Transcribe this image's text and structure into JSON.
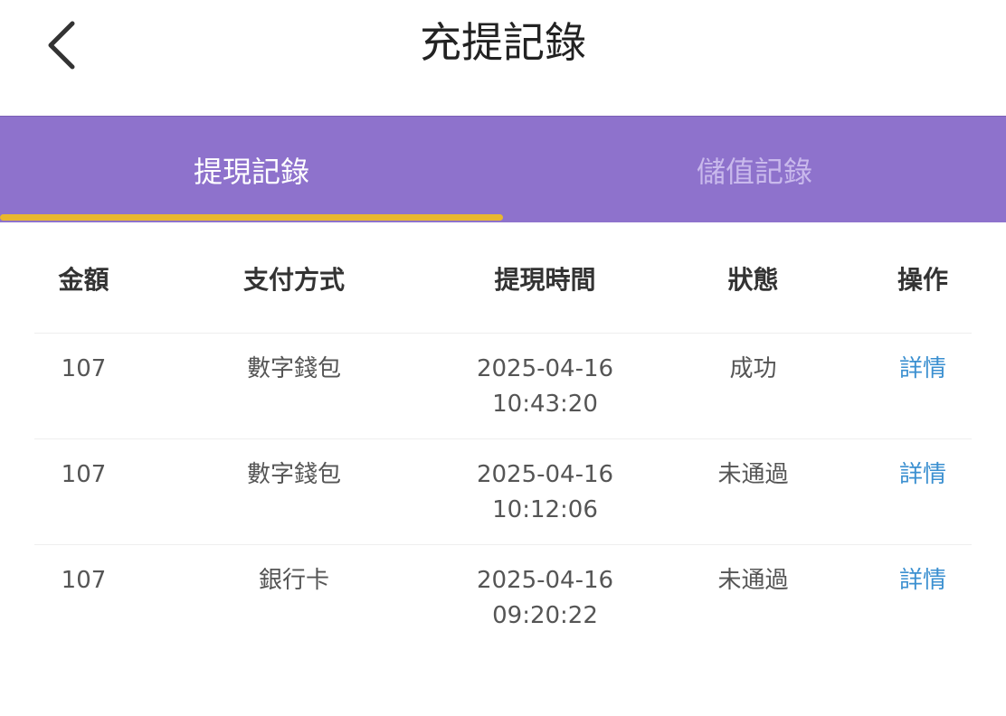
{
  "header": {
    "title": "充提記錄",
    "back_icon": "chevron-left-icon"
  },
  "tabs": [
    {
      "label": "提現記錄",
      "active": true
    },
    {
      "label": "儲值記錄",
      "active": false
    }
  ],
  "colors": {
    "tab_bar": "#8e72cc",
    "indicator": "#e9b72e",
    "link": "#3a8fd0"
  },
  "table": {
    "headers": [
      "金額",
      "支付方式",
      "提現時間",
      "狀態",
      "操作"
    ],
    "rows": [
      {
        "amount": "107",
        "method": "數字錢包",
        "date": "2025-04-16",
        "time": "10:43:20",
        "status": "成功",
        "action": "詳情"
      },
      {
        "amount": "107",
        "method": "數字錢包",
        "date": "2025-04-16",
        "time": "10:12:06",
        "status": "未通過",
        "action": "詳情"
      },
      {
        "amount": "107",
        "method": "銀行卡",
        "date": "2025-04-16",
        "time": "09:20:22",
        "status": "未通過",
        "action": "詳情"
      }
    ]
  }
}
